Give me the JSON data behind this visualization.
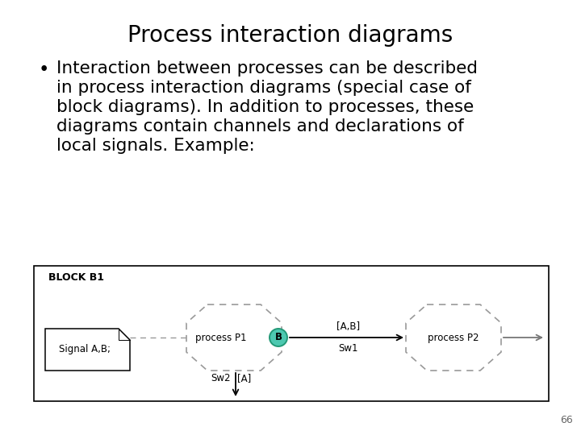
{
  "title": "Process interaction diagrams",
  "lines": [
    "Interaction between processes can be described",
    "in process interaction diagrams (special case of",
    "block diagrams). In addition to processes, these",
    "diagrams contain channels and declarations of",
    "local signals. Example:"
  ],
  "page_number": "66",
  "bg_color": "#ffffff",
  "title_fontsize": 20,
  "bullet_fontsize": 15.5,
  "diagram": {
    "block_label": "BLOCK B1",
    "signal_box_text": "Signal A,B;",
    "process_p1_label": "process P1",
    "process_p2_label": "process P2",
    "channel_b_label": "B",
    "channel_b_color": "#4dc8b0",
    "channel_b_edge": "#229977",
    "arrow1_label_top": "[A,B]",
    "arrow1_label_bot": "Sw1",
    "sw2_label": "Sw2",
    "a_label": "[A]",
    "dashed_border_color": "#999999",
    "arrow_color": "#777777"
  }
}
